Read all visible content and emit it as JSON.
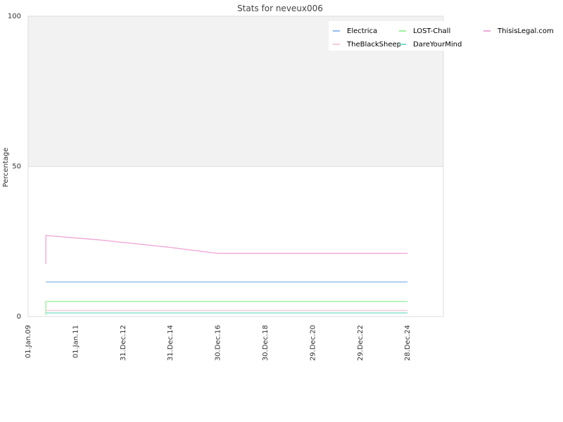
{
  "chart_data": {
    "type": "line",
    "title": "Stats for neveux006",
    "ylabel": "Percentage",
    "xlabel": "",
    "ylim": [
      0,
      100
    ],
    "yticks": [
      "0",
      "50",
      "100"
    ],
    "xlim": [
      "2009-01-01",
      "2026-07-01"
    ],
    "xticks": [
      {
        "date": "2009-01-01",
        "label": "01.Jan.09"
      },
      {
        "date": "2011-01-01",
        "label": "01.Jan.11"
      },
      {
        "date": "2012-12-31",
        "label": "31.Dec.12"
      },
      {
        "date": "2014-12-31",
        "label": "31.Dec.14"
      },
      {
        "date": "2016-12-30",
        "label": "30.Dec.16"
      },
      {
        "date": "2018-12-30",
        "label": "30.Dec.18"
      },
      {
        "date": "2020-12-29",
        "label": "29.Dec.20"
      },
      {
        "date": "2022-12-29",
        "label": "29.Dec.22"
      },
      {
        "date": "2024-12-28",
        "label": "28.Dec.24"
      }
    ],
    "grid": true,
    "shaded_band": [
      50,
      100
    ],
    "legend_position": "top-right",
    "series": [
      {
        "name": "Electrica",
        "color": "#8fbcf0",
        "points": [
          [
            "2009-10-01",
            11.5
          ],
          [
            "2024-12-28",
            11.5
          ]
        ]
      },
      {
        "name": "LOST-Chall",
        "color": "#9ef09e",
        "points": [
          [
            "2009-10-01",
            0.5
          ],
          [
            "2009-10-01",
            5
          ],
          [
            "2024-12-28",
            5
          ]
        ]
      },
      {
        "name": "ThisisLegal.com",
        "color": "#f0a8d8",
        "points": [
          [
            "2009-10-01",
            17.5
          ],
          [
            "2009-10-01",
            27
          ],
          [
            "2012-01-01",
            25.5
          ],
          [
            "2014-12-31",
            23
          ],
          [
            "2016-12-30",
            21
          ],
          [
            "2018-12-30",
            21
          ],
          [
            "2024-12-28",
            21
          ]
        ]
      },
      {
        "name": "TheBlackSheep",
        "color": "#f5c8d8",
        "points": [
          [
            "2009-10-01",
            2
          ],
          [
            "2024-12-28",
            2
          ]
        ]
      },
      {
        "name": "DareYourMind",
        "color": "#7fe0c8",
        "points": [
          [
            "2009-10-01",
            1.2
          ],
          [
            "2024-12-28",
            1.2
          ]
        ]
      }
    ]
  }
}
